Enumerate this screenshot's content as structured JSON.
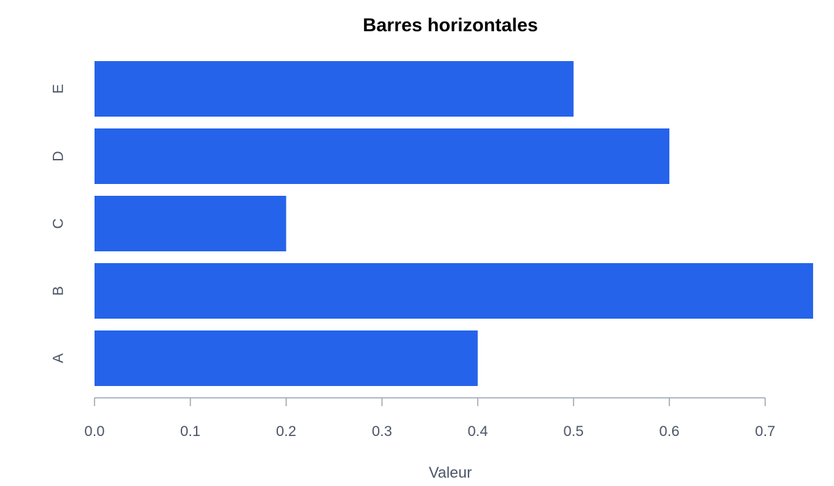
{
  "chart_data": {
    "type": "bar",
    "orientation": "horizontal",
    "title": "Barres horizontales",
    "xlabel": "Valeur",
    "ylabel": "",
    "categories": [
      "A",
      "B",
      "C",
      "D",
      "E"
    ],
    "values": [
      0.4,
      0.75,
      0.2,
      0.6,
      0.5
    ],
    "xlim": [
      0,
      0.75
    ],
    "x_ticks": [
      "0.0",
      "0.1",
      "0.2",
      "0.3",
      "0.4",
      "0.5",
      "0.6",
      "0.7"
    ],
    "bar_color": "#2563eb",
    "grid": false,
    "legend": "none"
  }
}
